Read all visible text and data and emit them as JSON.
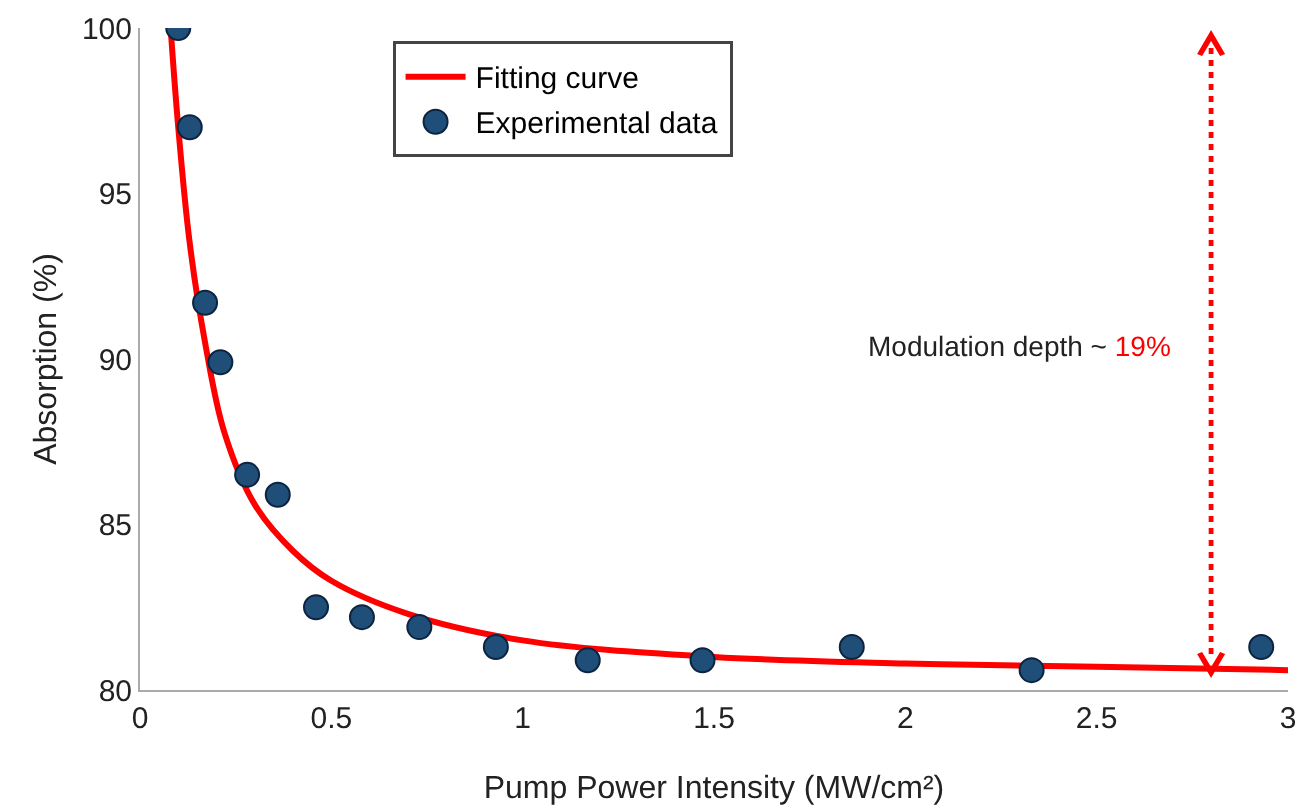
{
  "chart_data": {
    "type": "scatter",
    "xlabel": "Pump Power Intensity (MW/cm²)",
    "ylabel": "Absorption (%)",
    "xlim": [
      0,
      3
    ],
    "xticks": [
      0,
      0.5,
      1,
      1.5,
      2,
      2.5,
      3
    ],
    "ylim": [
      80,
      100
    ],
    "yticks": [
      80,
      85,
      90,
      95,
      100
    ],
    "grid": false,
    "legend": "top",
    "marker": "circle",
    "series": [
      {
        "name": "Fitting curve",
        "type": "line",
        "color": "#ff0000",
        "line_style": "solid",
        "marker": "none",
        "x": [
          0.08,
          0.1,
          0.13,
          0.17,
          0.22,
          0.3,
          0.4,
          0.5,
          0.7,
          1,
          1.5,
          2,
          2.5,
          3
        ],
        "values": [
          100,
          97,
          93.5,
          90.5,
          87.8,
          85.6,
          84.2,
          83.3,
          82.3,
          81.5,
          81,
          80.8,
          80.7,
          80.6
        ]
      },
      {
        "name": "Experimental data",
        "color": "#1f4e79",
        "x": [
          0.1,
          0.13,
          0.17,
          0.21,
          0.28,
          0.36,
          0.46,
          0.58,
          0.73,
          0.93,
          1.17,
          1.47,
          1.86,
          2.33,
          2.93
        ],
        "values": [
          100,
          97,
          91.7,
          89.9,
          86.5,
          85.9,
          82.5,
          82.2,
          81.9,
          81.3,
          80.9,
          80.9,
          81.3,
          80.6,
          81.3
        ]
      }
    ],
    "annotations": [
      "Modulation depth ~ 19%"
    ]
  }
}
